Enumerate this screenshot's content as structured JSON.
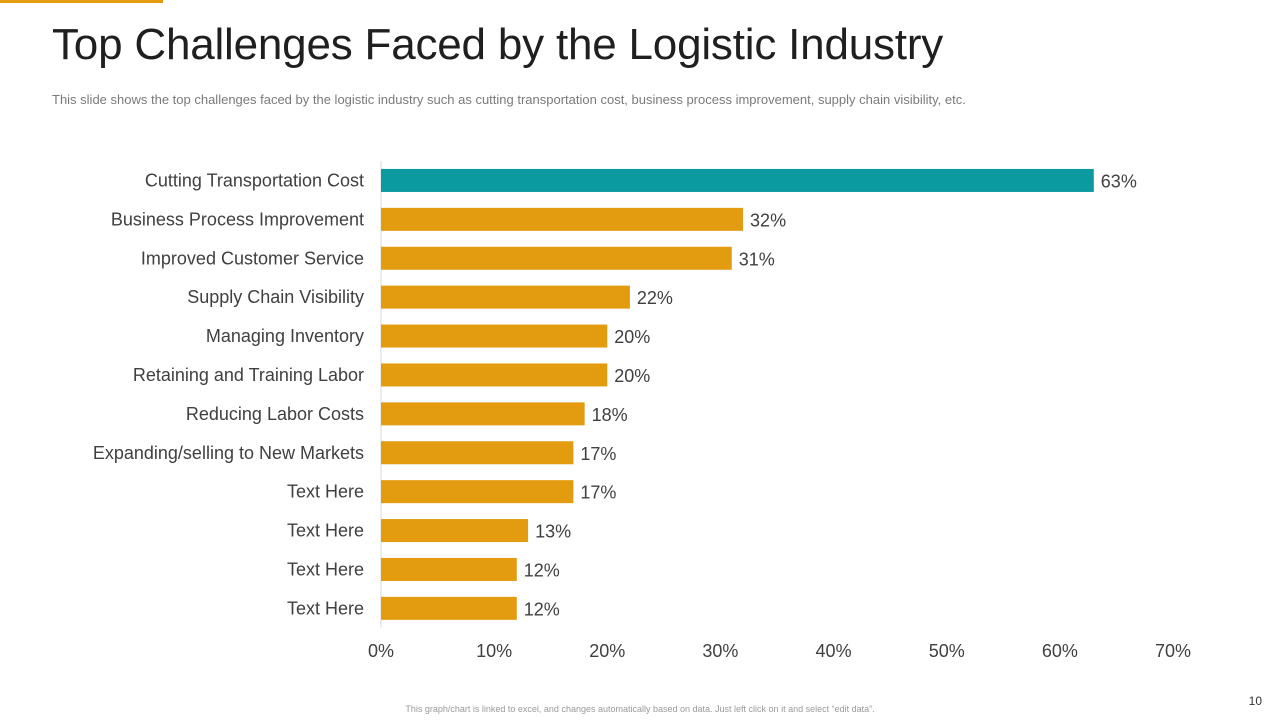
{
  "slide": {
    "title": "Top Challenges Faced by the Logistic Industry",
    "subtitle": "This slide shows the top challenges faced by the logistic industry such as cutting transportation cost, business process improvement, supply chain visibility, etc.",
    "footer_note": "This graph/chart is linked to excel, and changes automatically based on data. Just left click on it and select “edit data”.",
    "page_number": "10",
    "colors": {
      "accent": "#E39B10",
      "highlight": "#0A9AA0",
      "bar": "#E39B10",
      "axis": "#d9d9d9",
      "text": "#404040"
    }
  },
  "chart_data": {
    "type": "bar",
    "orientation": "horizontal",
    "title": "",
    "xlabel": "",
    "ylabel": "",
    "categories": [
      "Cutting Transportation Cost",
      "Business Process Improvement",
      "Improved Customer Service",
      "Supply Chain Visibility",
      "Managing Inventory",
      "Retaining and Training Labor",
      "Reducing Labor Costs",
      "Expanding/selling to New Markets",
      "Text Here",
      "Text Here",
      "Text Here",
      "Text Here"
    ],
    "values": [
      63,
      32,
      31,
      22,
      20,
      20,
      18,
      17,
      17,
      13,
      12,
      12
    ],
    "value_labels": [
      "63%",
      "32%",
      "31%",
      "22%",
      "20%",
      "20%",
      "18%",
      "17%",
      "17%",
      "13%",
      "12%",
      "12%"
    ],
    "highlight_index": 0,
    "xlim": [
      0,
      70
    ],
    "xticks": [
      0,
      10,
      20,
      30,
      40,
      50,
      60,
      70
    ],
    "xtick_labels": [
      "0%",
      "10%",
      "20%",
      "30%",
      "40%",
      "50%",
      "60%",
      "70%"
    ],
    "grid": false,
    "legend": "none"
  }
}
